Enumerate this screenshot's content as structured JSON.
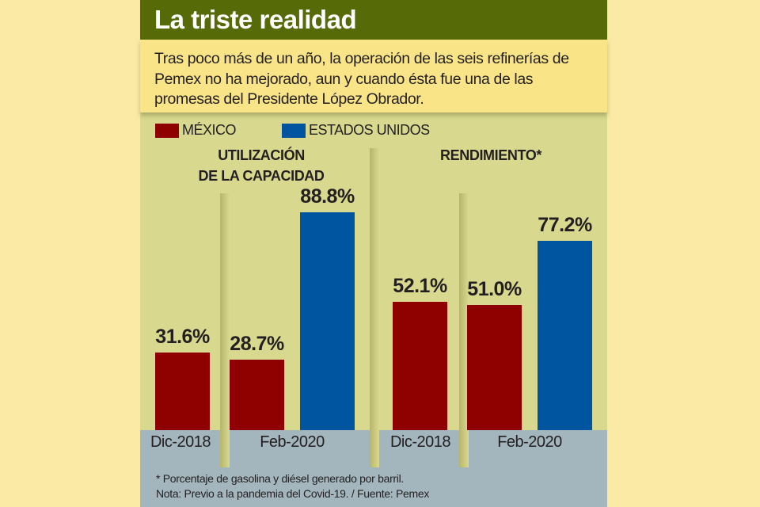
{
  "header": {
    "title": "La triste realidad",
    "intro": "Tras poco más de un año, la operación de las seis refinerías de Pemex no ha mejorado, aun y cuando ésta fue una de las promesas del Presidente López Obrador."
  },
  "colors": {
    "header_bg": "#566a07",
    "mexico": "#8f0000",
    "estados_unidos": "#0055a0",
    "panel_bg": "#d8d98f",
    "intro_bg": "#f9e488",
    "bottom_band": "#a3b6bd"
  },
  "chart_data": [
    {
      "type": "bar",
      "title": "UTILIZACIÓN DE LA CAPACIDAD",
      "title_lines": [
        "UTILIZACIÓN",
        "DE LA CAPACIDAD"
      ],
      "categories": [
        "Dic-2018",
        "Feb-2020"
      ],
      "series": [
        {
          "name": "MÉXICO",
          "values": [
            31.6,
            28.7
          ]
        },
        {
          "name": "ESTADOS UNIDOS",
          "values": [
            null,
            88.8
          ]
        }
      ],
      "data_labels": [
        "31.6%",
        "28.7%",
        "88.8%"
      ],
      "ylim": [
        0,
        100
      ],
      "grid": false,
      "legend": "top-left"
    },
    {
      "type": "bar",
      "title": "RENDIMIENTO*",
      "title_lines": [
        "RENDIMIENTO*"
      ],
      "categories": [
        "Dic-2018",
        "Feb-2020"
      ],
      "series": [
        {
          "name": "MÉXICO",
          "values": [
            52.1,
            51.0
          ]
        },
        {
          "name": "ESTADOS UNIDOS",
          "values": [
            null,
            77.2
          ]
        }
      ],
      "data_labels": [
        "52.1%",
        "51.0%",
        "77.2%"
      ],
      "ylim": [
        0,
        100
      ],
      "grid": false,
      "legend": "top-left"
    }
  ],
  "legend": [
    {
      "label": "MÉXICO",
      "color": "#8f0000"
    },
    {
      "label": "ESTADOS UNIDOS",
      "color": "#0055a0"
    }
  ],
  "notes": {
    "footnote": "* Porcentaje de gasolina y diésel generado por barril.",
    "source": "Nota: Previo a la pandemia del Covid-19. / Fuente: Pemex"
  }
}
